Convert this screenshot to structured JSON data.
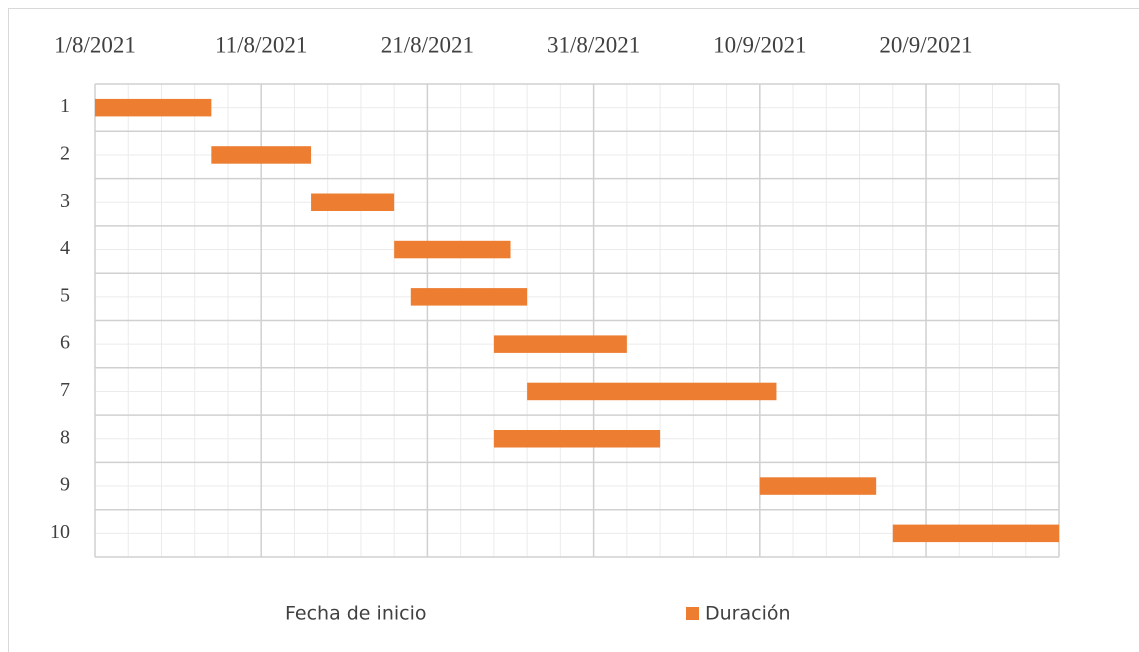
{
  "chart_data": {
    "type": "gantt",
    "categories": [
      "1",
      "2",
      "3",
      "4",
      "5",
      "6",
      "7",
      "8",
      "9",
      "10"
    ],
    "series": [
      {
        "name": "Fecha de inicio",
        "color": "none",
        "values": [
          44409,
          44416,
          44422,
          44427,
          44428,
          44433,
          44435,
          44433,
          44449,
          44457
        ]
      },
      {
        "name": "Duración",
        "color": "#ed7d31",
        "values": [
          7,
          6,
          5,
          7,
          7,
          8,
          15,
          10,
          7,
          10
        ]
      }
    ],
    "xlim": [
      44409,
      44467
    ],
    "xticks": [
      {
        "value": 44409,
        "label": "1/8/2021"
      },
      {
        "value": 44419,
        "label": "11/8/2021"
      },
      {
        "value": 44429,
        "label": "21/8/2021"
      },
      {
        "value": 44439,
        "label": "31/8/2021"
      },
      {
        "value": 44449,
        "label": "10/9/2021"
      },
      {
        "value": 44459,
        "label": "20/9/2021"
      }
    ],
    "grid": true,
    "legend": "bottom"
  }
}
